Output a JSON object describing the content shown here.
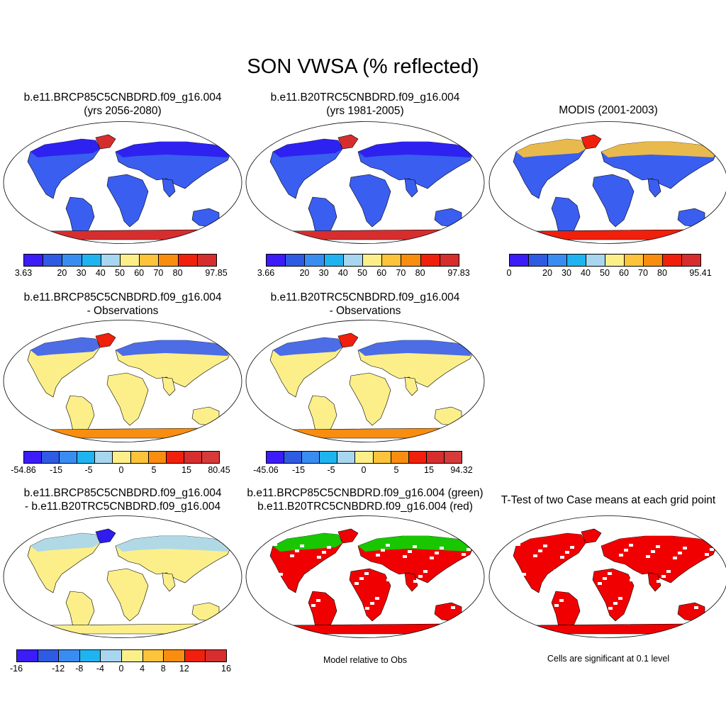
{
  "figure": {
    "title": "SON VWSA (% reflected)"
  },
  "panels": [
    {
      "id": "p1",
      "title_lines": [
        "b.e11.BRCP85C5CNBDRD.f09_g16.004",
        "(yrs 2056-2080)"
      ],
      "map_style": "case",
      "colorbar": {
        "colors": [
          "#3c1cf7",
          "#2f5be3",
          "#3a8df0",
          "#1fb4ef",
          "#a8d6ee",
          "#fcef8a",
          "#fcc33b",
          "#f88d10",
          "#f0200c",
          "#d62e2e"
        ],
        "labels": [
          "3.63",
          "20",
          "30",
          "40",
          "50",
          "60",
          "70",
          "80",
          "97.85"
        ]
      }
    },
    {
      "id": "p2",
      "title_lines": [
        "b.e11.B20TRC5CNBDRD.f09_g16.004",
        "(yrs 1981-2005)"
      ],
      "map_style": "case",
      "colorbar": {
        "colors": [
          "#3c1cf7",
          "#2f5be3",
          "#3a8df0",
          "#1fb4ef",
          "#a8d6ee",
          "#fcef8a",
          "#fcc33b",
          "#f88d10",
          "#f0200c",
          "#d62e2e"
        ],
        "labels": [
          "3.66",
          "20",
          "30",
          "40",
          "50",
          "60",
          "70",
          "80",
          "97.83"
        ]
      }
    },
    {
      "id": "p3",
      "title_lines": [
        "MODIS (2001-2003)"
      ],
      "map_style": "obs",
      "colorbar": {
        "colors": [
          "#3c1cf7",
          "#2f5be3",
          "#3a8df0",
          "#1fb4ef",
          "#a8d6ee",
          "#fcef8a",
          "#fcc33b",
          "#f88d10",
          "#f0200c",
          "#d62e2e"
        ],
        "labels": [
          "0",
          "20",
          "30",
          "40",
          "50",
          "60",
          "70",
          "80",
          "95.41"
        ]
      }
    },
    {
      "id": "p4",
      "title_lines": [
        "b.e11.BRCP85C5CNBDRD.f09_g16.004",
        "- Observations"
      ],
      "map_style": "diff",
      "colorbar": {
        "colors": [
          "#3c1cf7",
          "#2f5be3",
          "#3a8df0",
          "#1fb4ef",
          "#a8d6ee",
          "#fcef8a",
          "#fcc33b",
          "#f88d10",
          "#f0200c",
          "#d62e2e",
          "#d63a3a"
        ],
        "labels": [
          "-54.86",
          "-15",
          "-5",
          "0",
          "5",
          "15",
          "80.45"
        ]
      }
    },
    {
      "id": "p5",
      "title_lines": [
        "b.e11.B20TRC5CNBDRD.f09_g16.004",
        "- Observations"
      ],
      "map_style": "diff",
      "colorbar": {
        "colors": [
          "#3c1cf7",
          "#2f5be3",
          "#3a8df0",
          "#1fb4ef",
          "#a8d6ee",
          "#fcef8a",
          "#fcc33b",
          "#f88d10",
          "#f0200c",
          "#d62e2e",
          "#d63a3a"
        ],
        "labels": [
          "-45.06",
          "-15",
          "-5",
          "0",
          "5",
          "15",
          "94.32"
        ]
      }
    },
    {
      "id": "p6",
      "title_lines": [
        "b.e11.BRCP85C5CNBDRD.f09_g16.004",
        "- b.e11.B20TRC5CNBDRD.f09_g16.004"
      ],
      "map_style": "casediff",
      "colorbar": {
        "colors": [
          "#3c1cf7",
          "#2f5be3",
          "#3a8df0",
          "#1fb4ef",
          "#a8d6ee",
          "#fcef8a",
          "#fcc33b",
          "#f88d10",
          "#f0200c",
          "#d62e2e"
        ],
        "labels": [
          "-16",
          "-12",
          "-8",
          "-4",
          "0",
          "4",
          "8",
          "12",
          "16"
        ]
      }
    },
    {
      "id": "p7",
      "title_lines": [
        "b.e11.BRCP85C5CNBDRD.f09_g16.004 (green)",
        "b.e11.B20TRC5CNBDRD.f09_g16.004 (red)"
      ],
      "map_style": "compare",
      "note": "Model relative to Obs"
    },
    {
      "id": "p8",
      "title_lines": [
        "T-Test of two Case means at each grid point"
      ],
      "map_style": "ttest",
      "note": "Cells are significant at 0.1 level"
    }
  ],
  "map_colors": {
    "case": {
      "land": "#3a5ef0",
      "north": "#2e1cf0",
      "greenland": "#d62e2e",
      "antarctica": "#d62e2e"
    },
    "obs": {
      "land": "#3a5ef0",
      "north": "#fcc33b",
      "greenland": "#f0200c",
      "antarctica": "#f0200c"
    },
    "diff": {
      "land": "#fcef8a",
      "north": "#3a5ef0",
      "greenland": "#f0200c",
      "antarctica": "#f88d10"
    },
    "casediff": {
      "land": "#fcef8a",
      "north": "#a8d6ee",
      "greenland": "#2e1cf0",
      "antarctica": "#fcef8a"
    },
    "compare": {
      "land": "#f00000",
      "north": "#00dd00",
      "greenland": "#f00000",
      "antarctica": "#f00000"
    },
    "ttest": {
      "land": "#f00000",
      "north": "#f00000",
      "greenland": "#f00000",
      "antarctica": "#f00000"
    }
  }
}
